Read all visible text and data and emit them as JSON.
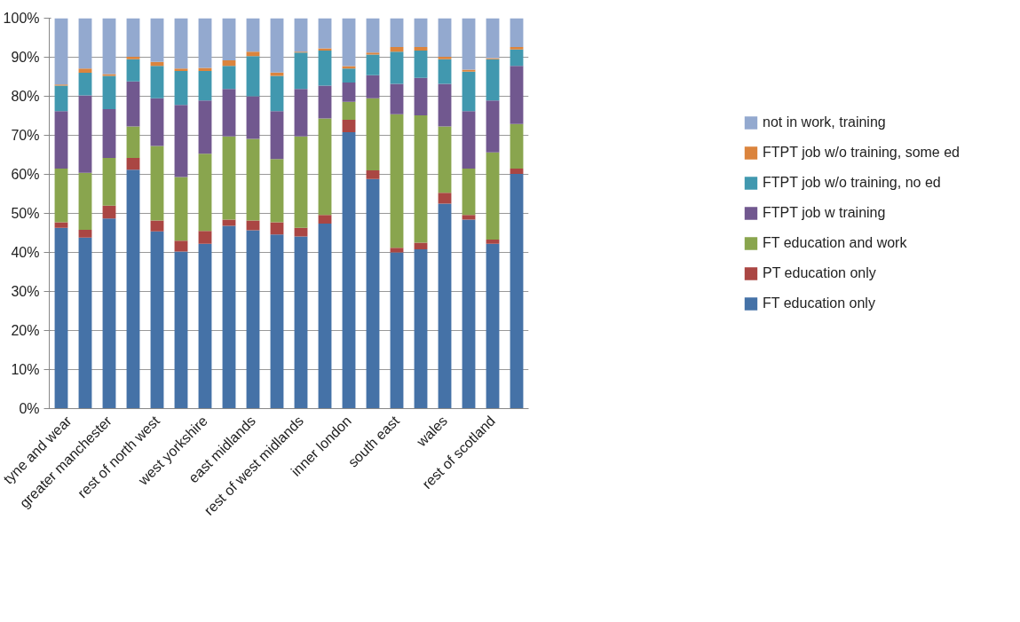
{
  "chart_data": {
    "type": "bar",
    "stacked": true,
    "categories": [
      "tyne and wear",
      null,
      "greater manchester",
      null,
      "rest of north west",
      null,
      "west yorkshire",
      null,
      "east midlands",
      null,
      "rest of west midlands",
      null,
      "inner london",
      null,
      "south east",
      null,
      "wales",
      null,
      "rest of scotland",
      null
    ],
    "series": [
      {
        "name": "FT education only",
        "color": "#4572a7",
        "values": [
          46.3,
          43.8,
          48.7,
          61.2,
          45.4,
          40.2,
          42.2,
          46.8,
          45.7,
          44.6,
          44.1,
          47.4,
          70.8,
          58.8,
          40.0,
          40.8,
          52.5,
          48.4,
          42.2,
          60.1
        ]
      },
      {
        "name": "PT education only",
        "color": "#aa4643",
        "values": [
          1.4,
          2.0,
          3.3,
          3.0,
          2.8,
          2.8,
          3.3,
          1.6,
          2.5,
          3.1,
          2.2,
          2.2,
          3.2,
          2.2,
          1.2,
          1.7,
          2.8,
          1.2,
          1.1,
          1.4
        ]
      },
      {
        "name": "FT education and work",
        "color": "#89a54e",
        "values": [
          13.8,
          14.6,
          12.2,
          8.1,
          19.1,
          16.3,
          19.8,
          21.3,
          20.9,
          16.2,
          23.4,
          24.7,
          4.6,
          18.5,
          34.2,
          32.6,
          17.0,
          11.9,
          22.3,
          11.4
        ]
      },
      {
        "name": "FTPT job w training",
        "color": "#71588f",
        "values": [
          14.7,
          19.8,
          12.5,
          11.5,
          12.2,
          18.5,
          13.6,
          12.2,
          10.9,
          12.3,
          12.2,
          8.4,
          4.9,
          5.9,
          7.8,
          9.6,
          10.9,
          14.7,
          13.3,
          14.9
        ]
      },
      {
        "name": "FTPT job w/o training, no ed",
        "color": "#4198af",
        "values": [
          6.5,
          5.8,
          8.5,
          5.7,
          8.3,
          8.7,
          7.6,
          5.9,
          10.3,
          9.0,
          9.3,
          9.0,
          3.6,
          5.3,
          8.2,
          7.0,
          6.3,
          10.1,
          10.6,
          4.2
        ]
      },
      {
        "name": "FTPT job w/o training, some ed",
        "color": "#db843d",
        "values": [
          0.3,
          1.1,
          0.5,
          0.6,
          1.0,
          0.6,
          0.8,
          1.4,
          1.1,
          0.9,
          0.2,
          0.6,
          0.6,
          0.5,
          1.2,
          0.9,
          0.6,
          0.5,
          0.3,
          0.6
        ]
      },
      {
        "name": "not in work, training",
        "color": "#93a9cf",
        "values": [
          17.0,
          12.9,
          14.3,
          9.9,
          11.2,
          12.9,
          12.7,
          10.8,
          8.6,
          13.9,
          8.6,
          7.7,
          12.3,
          8.8,
          7.4,
          7.4,
          9.9,
          13.2,
          10.2,
          7.4
        ]
      }
    ],
    "ylim": [
      0,
      100
    ],
    "yticks": [
      {
        "value": 0,
        "label": "0%"
      },
      {
        "value": 10,
        "label": "10%"
      },
      {
        "value": 20,
        "label": "20%"
      },
      {
        "value": 30,
        "label": "30%"
      },
      {
        "value": 40,
        "label": "40%"
      },
      {
        "value": 50,
        "label": "50%"
      },
      {
        "value": 60,
        "label": "60%"
      },
      {
        "value": 70,
        "label": "70%"
      },
      {
        "value": 80,
        "label": "80%"
      },
      {
        "value": 90,
        "label": "90%"
      },
      {
        "value": 100,
        "label": "100%"
      }
    ],
    "grid": "y",
    "legend": "right"
  }
}
